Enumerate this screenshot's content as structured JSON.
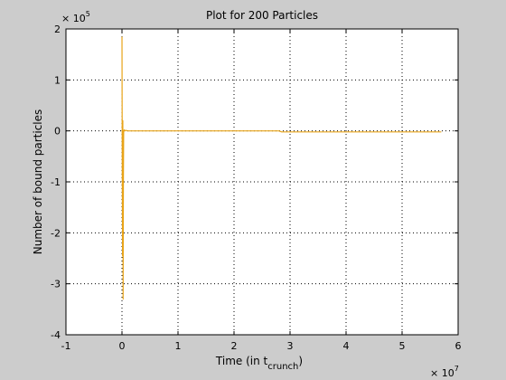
{
  "chart_data": {
    "type": "line",
    "title": "Plot for 200 Particles",
    "xlabel_main": "Time (in t",
    "xlabel_sub": "crunch",
    "xlabel_close": ")",
    "ylabel": "Number of bound particles",
    "x_exponent_base": "× 10",
    "x_exponent_power": "7",
    "y_exponent_base": "× 10",
    "y_exponent_power": "5",
    "xlim": [
      -1,
      6
    ],
    "ylim": [
      -4,
      2
    ],
    "xticks": [
      -1,
      0,
      1,
      2,
      3,
      4,
      5,
      6
    ],
    "yticks": [
      -4,
      -3,
      -2,
      -1,
      0,
      1,
      2
    ],
    "xtick_labels": [
      "-1",
      "0",
      "1",
      "2",
      "3",
      "4",
      "5",
      "6"
    ],
    "ytick_labels": [
      "-4",
      "-3",
      "-2",
      "-1",
      "0",
      "1",
      "2"
    ],
    "grid": true,
    "grid_style": "dotted",
    "series": [
      {
        "color": "#e8a317",
        "x": [
          0.0,
          0.005,
          0.01,
          0.015,
          0.02,
          0.025,
          0.03,
          0.04,
          0.05,
          0.07,
          0.1,
          0.3,
          1.0,
          2.0,
          2.8,
          2.85,
          3.5,
          4.5,
          5.7
        ],
        "y": [
          1.85,
          -0.8,
          -2.45,
          0.2,
          -3.3,
          -1.0,
          0.0,
          0.02,
          0.0,
          0.01,
          0.0,
          0.0,
          0.0,
          0.0,
          0.0,
          -0.02,
          -0.02,
          -0.02,
          -0.02
        ]
      }
    ]
  }
}
